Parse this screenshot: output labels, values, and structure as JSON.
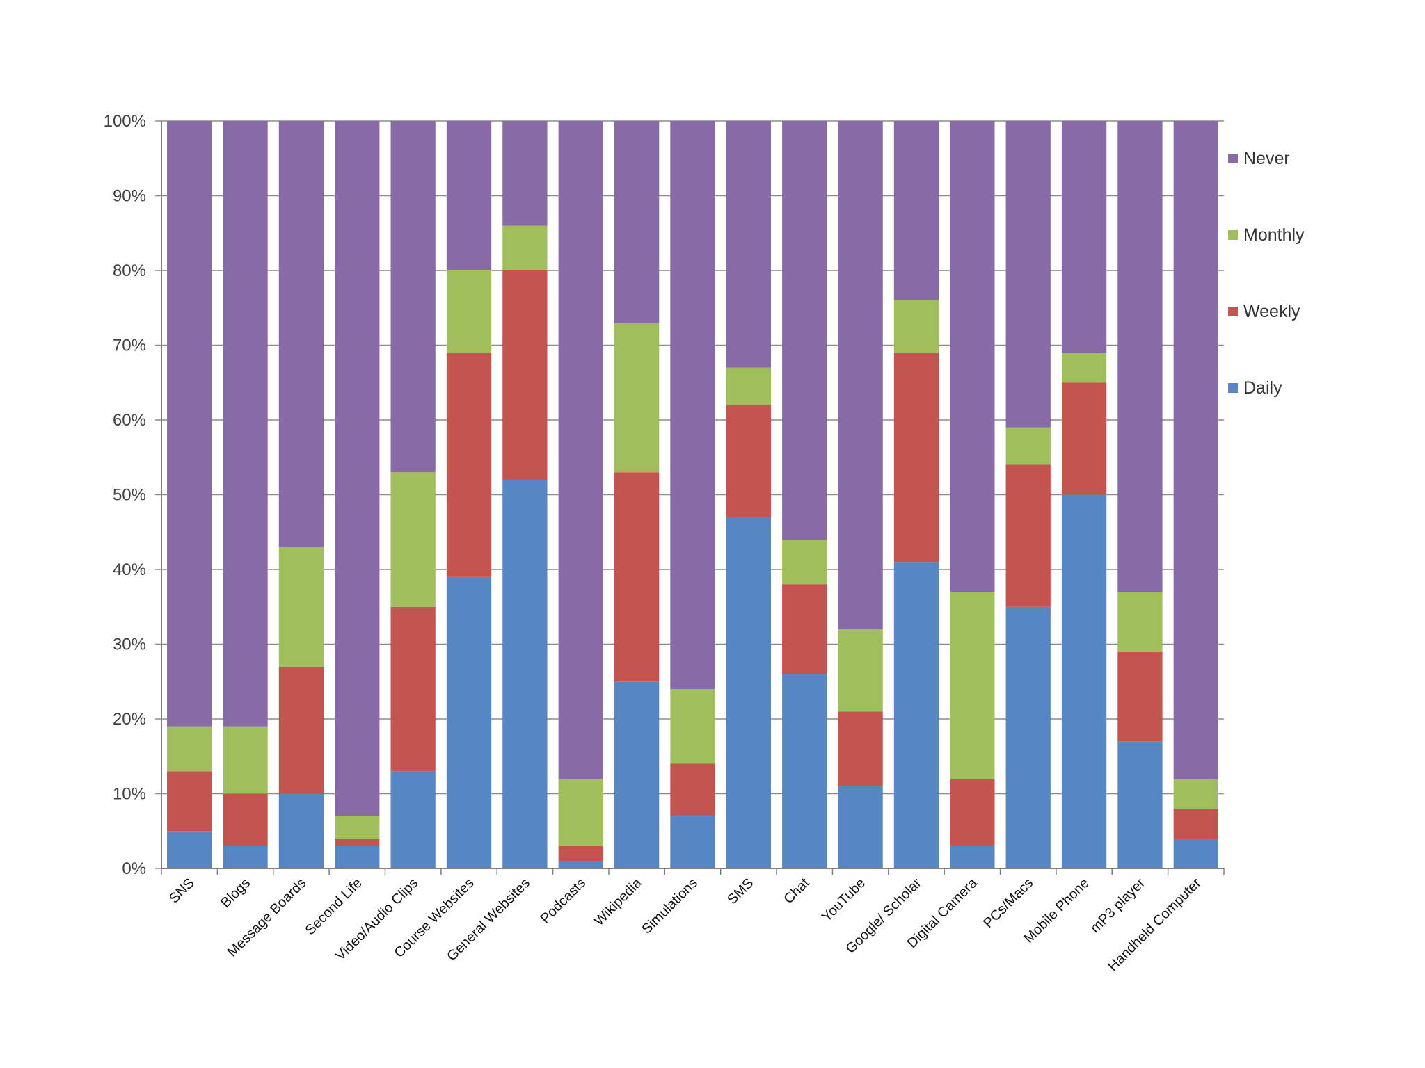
{
  "chart_data": {
    "type": "bar",
    "stacked": true,
    "percent": true,
    "title": "",
    "xlabel": "",
    "ylabel": "",
    "ylim": [
      0,
      100
    ],
    "yticks": [
      "0%",
      "10%",
      "20%",
      "30%",
      "40%",
      "50%",
      "60%",
      "70%",
      "80%",
      "90%",
      "100%"
    ],
    "grid": true,
    "legend_position": "right",
    "categories": [
      "SNS",
      "Blogs",
      "Message Boards",
      "Second Life",
      "Video/Audio Clips",
      "Course Websites",
      "General Websites",
      "Podcasts",
      "Wikipedia",
      "Simulations",
      "SMS",
      "Chat",
      "YouTube",
      "Google/ Scholar",
      "Digital Camera",
      "PCs/Macs",
      "Mobile Phone",
      "mP3 player",
      "Handheld Computer"
    ],
    "series": [
      {
        "name": "Daily",
        "color": "#5787C2",
        "values": [
          5,
          3,
          10,
          3,
          13,
          39,
          52,
          1,
          25,
          7,
          47,
          26,
          11,
          41,
          3,
          35,
          50,
          17,
          4
        ]
      },
      {
        "name": "Weekly",
        "color": "#C5534F",
        "values": [
          8,
          7,
          17,
          1,
          22,
          30,
          28,
          2,
          28,
          7,
          15,
          12,
          10,
          28,
          9,
          19,
          15,
          12,
          4
        ]
      },
      {
        "name": "Monthly",
        "color": "#A1BE5C",
        "values": [
          6,
          9,
          16,
          3,
          18,
          11,
          6,
          9,
          20,
          10,
          5,
          6,
          11,
          7,
          25,
          5,
          4,
          8,
          4
        ]
      },
      {
        "name": "Never",
        "color": "#876BA7",
        "values": [
          81,
          81,
          57,
          93,
          47,
          20,
          14,
          88,
          27,
          76,
          33,
          56,
          68,
          24,
          63,
          41,
          31,
          63,
          88
        ]
      }
    ],
    "legend": [
      "Never",
      "Monthly",
      "Weekly",
      "Daily"
    ],
    "gridline_color": "#8C8C8C",
    "axis_color": "#7F7F7F"
  }
}
